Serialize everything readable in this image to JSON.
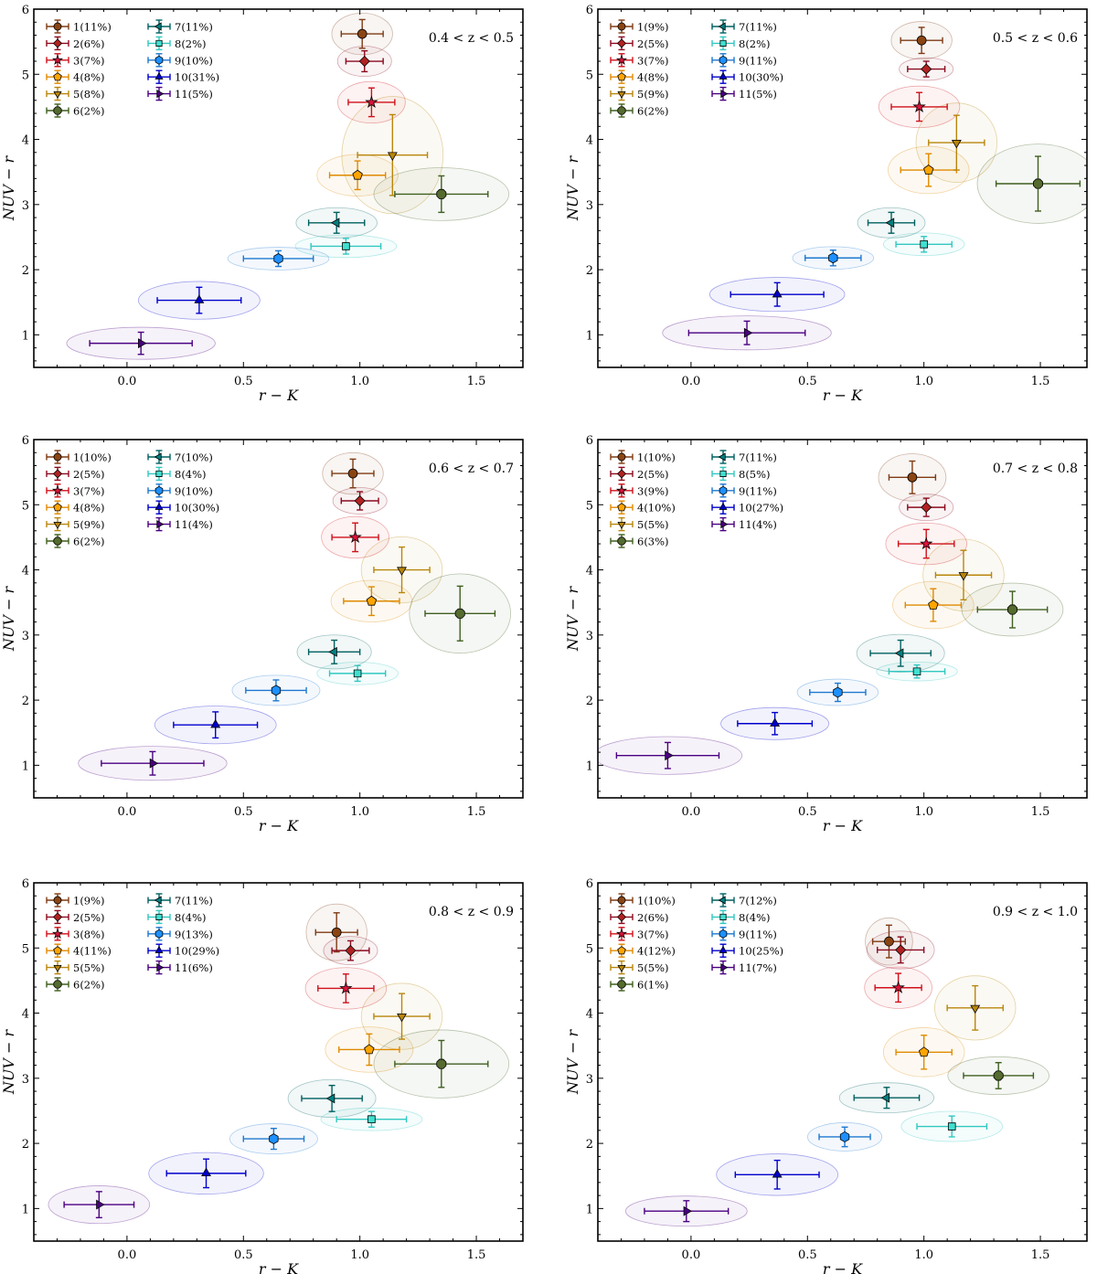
{
  "styles": [
    {
      "id": 1,
      "marker": "circle",
      "color": "#7f3b13",
      "fill": "#8b4513"
    },
    {
      "id": 2,
      "marker": "diamond",
      "color": "#8b0a1e",
      "fill": "#b22222"
    },
    {
      "id": 3,
      "marker": "star",
      "color": "#d0101a",
      "fill": "#dc143c"
    },
    {
      "id": 4,
      "marker": "pentagon",
      "color": "#e08a00",
      "fill": "#ffa500"
    },
    {
      "id": 5,
      "marker": "tri-down",
      "color": "#b8860b",
      "fill": "#b8860b"
    },
    {
      "id": 6,
      "marker": "octagon",
      "color": "#3f5f1f",
      "fill": "#556b2f"
    },
    {
      "id": 7,
      "marker": "tri-left",
      "color": "#006060",
      "fill": "#008080"
    },
    {
      "id": 8,
      "marker": "square",
      "color": "#30c8c0",
      "fill": "#40e0d0"
    },
    {
      "id": 9,
      "marker": "hexagon",
      "color": "#1e78d0",
      "fill": "#1e90ff"
    },
    {
      "id": 10,
      "marker": "tri-up",
      "color": "#0000cd",
      "fill": "#0000cd"
    },
    {
      "id": 11,
      "marker": "tri-right",
      "color": "#4b0082",
      "fill": "#4b0082"
    }
  ],
  "chart_data": [
    {
      "type": "scatter",
      "title": "0.4 < z < 0.5",
      "xlabel": "r − K",
      "ylabel": "NUV − r",
      "xlim": [
        -0.4,
        1.7
      ],
      "ylim": [
        0.5,
        6
      ],
      "xticks": [
        "0.0",
        "0.5",
        "1.0",
        "1.5"
      ],
      "yticks": [
        "1",
        "2",
        "3",
        "4",
        "5",
        "6"
      ],
      "legend": [
        "1(11%)",
        "2(6%)",
        "3(7%)",
        "4(8%)",
        "5(8%)",
        "6(2%)",
        "7(11%)",
        "8(2%)",
        "9(10%)",
        "10(31%)",
        "11(5%)"
      ],
      "points": [
        {
          "x": 1.01,
          "y": 5.62,
          "xerr": 0.09,
          "yerr": 0.22
        },
        {
          "x": 1.02,
          "y": 5.2,
          "xerr": 0.08,
          "yerr": 0.16
        },
        {
          "x": 1.05,
          "y": 4.57,
          "xerr": 0.1,
          "yerr": 0.22
        },
        {
          "x": 0.99,
          "y": 3.45,
          "xerr": 0.12,
          "yerr": 0.22
        },
        {
          "x": 1.14,
          "y": 3.76,
          "xerr": 0.15,
          "yerr": 0.62
        },
        {
          "x": 1.35,
          "y": 3.16,
          "xerr": 0.2,
          "yerr": 0.28
        },
        {
          "x": 0.9,
          "y": 2.72,
          "xerr": 0.12,
          "yerr": 0.16
        },
        {
          "x": 0.94,
          "y": 2.36,
          "xerr": 0.15,
          "yerr": 0.12
        },
        {
          "x": 0.65,
          "y": 2.17,
          "xerr": 0.15,
          "yerr": 0.12
        },
        {
          "x": 0.31,
          "y": 1.53,
          "xerr": 0.18,
          "yerr": 0.2
        },
        {
          "x": 0.06,
          "y": 0.87,
          "xerr": 0.22,
          "yerr": 0.17
        }
      ]
    },
    {
      "type": "scatter",
      "title": "0.5 < z < 0.6",
      "xlabel": "r − K",
      "ylabel": "NUV − r",
      "xlim": [
        -0.4,
        1.7
      ],
      "ylim": [
        0.5,
        6
      ],
      "xticks": [
        "0.0",
        "0.5",
        "1.0",
        "1.5"
      ],
      "yticks": [
        "1",
        "2",
        "3",
        "4",
        "5",
        "6"
      ],
      "legend": [
        "1(9%)",
        "2(5%)",
        "3(7%)",
        "4(8%)",
        "5(9%)",
        "6(2%)",
        "7(11%)",
        "8(2%)",
        "9(11%)",
        "10(30%)",
        "11(5%)"
      ],
      "points": [
        {
          "x": 0.99,
          "y": 5.52,
          "xerr": 0.09,
          "yerr": 0.2
        },
        {
          "x": 1.01,
          "y": 5.08,
          "xerr": 0.08,
          "yerr": 0.12
        },
        {
          "x": 0.98,
          "y": 4.5,
          "xerr": 0.12,
          "yerr": 0.22
        },
        {
          "x": 1.02,
          "y": 3.53,
          "xerr": 0.12,
          "yerr": 0.25
        },
        {
          "x": 1.14,
          "y": 3.95,
          "xerr": 0.12,
          "yerr": 0.42
        },
        {
          "x": 1.49,
          "y": 3.32,
          "xerr": 0.18,
          "yerr": 0.42
        },
        {
          "x": 0.86,
          "y": 2.72,
          "xerr": 0.1,
          "yerr": 0.16
        },
        {
          "x": 1.0,
          "y": 2.39,
          "xerr": 0.12,
          "yerr": 0.12
        },
        {
          "x": 0.61,
          "y": 2.18,
          "xerr": 0.12,
          "yerr": 0.12
        },
        {
          "x": 0.37,
          "y": 1.62,
          "xerr": 0.2,
          "yerr": 0.18
        },
        {
          "x": 0.24,
          "y": 1.03,
          "xerr": 0.25,
          "yerr": 0.18
        }
      ]
    },
    {
      "type": "scatter",
      "title": "0.6 < z < 0.7",
      "xlabel": "r − K",
      "ylabel": "NUV − r",
      "xlim": [
        -0.4,
        1.7
      ],
      "ylim": [
        0.5,
        6
      ],
      "xticks": [
        "0.0",
        "0.5",
        "1.0",
        "1.5"
      ],
      "yticks": [
        "1",
        "2",
        "3",
        "4",
        "5",
        "6"
      ],
      "legend": [
        "1(10%)",
        "2(5%)",
        "3(7%)",
        "4(8%)",
        "5(9%)",
        "6(2%)",
        "7(10%)",
        "8(4%)",
        "9(10%)",
        "10(30%)",
        "11(4%)"
      ],
      "points": [
        {
          "x": 0.97,
          "y": 5.48,
          "xerr": 0.09,
          "yerr": 0.22
        },
        {
          "x": 1.0,
          "y": 5.06,
          "xerr": 0.08,
          "yerr": 0.14
        },
        {
          "x": 0.98,
          "y": 4.5,
          "xerr": 0.1,
          "yerr": 0.22
        },
        {
          "x": 1.05,
          "y": 3.52,
          "xerr": 0.12,
          "yerr": 0.22
        },
        {
          "x": 1.18,
          "y": 4.0,
          "xerr": 0.12,
          "yerr": 0.35
        },
        {
          "x": 1.43,
          "y": 3.33,
          "xerr": 0.15,
          "yerr": 0.42
        },
        {
          "x": 0.89,
          "y": 2.74,
          "xerr": 0.11,
          "yerr": 0.18
        },
        {
          "x": 0.99,
          "y": 2.41,
          "xerr": 0.12,
          "yerr": 0.12
        },
        {
          "x": 0.64,
          "y": 2.15,
          "xerr": 0.13,
          "yerr": 0.16
        },
        {
          "x": 0.38,
          "y": 1.62,
          "xerr": 0.18,
          "yerr": 0.2
        },
        {
          "x": 0.11,
          "y": 1.03,
          "xerr": 0.22,
          "yerr": 0.18
        }
      ]
    },
    {
      "type": "scatter",
      "title": "0.7 < z < 0.8",
      "xlabel": "r − K",
      "ylabel": "NUV − r",
      "xlim": [
        -0.4,
        1.7
      ],
      "ylim": [
        0.5,
        6
      ],
      "xticks": [
        "0.0",
        "0.5",
        "1.0",
        "1.5"
      ],
      "yticks": [
        "1",
        "2",
        "3",
        "4",
        "5",
        "6"
      ],
      "legend": [
        "1(10%)",
        "2(5%)",
        "3(9%)",
        "4(10%)",
        "5(5%)",
        "6(3%)",
        "7(11%)",
        "8(5%)",
        "9(11%)",
        "10(27%)",
        "11(4%)"
      ],
      "points": [
        {
          "x": 0.95,
          "y": 5.42,
          "xerr": 0.1,
          "yerr": 0.25
        },
        {
          "x": 1.01,
          "y": 4.96,
          "xerr": 0.08,
          "yerr": 0.14
        },
        {
          "x": 1.01,
          "y": 4.4,
          "xerr": 0.12,
          "yerr": 0.22
        },
        {
          "x": 1.04,
          "y": 3.46,
          "xerr": 0.12,
          "yerr": 0.25
        },
        {
          "x": 1.17,
          "y": 3.92,
          "xerr": 0.12,
          "yerr": 0.38
        },
        {
          "x": 1.38,
          "y": 3.39,
          "xerr": 0.15,
          "yerr": 0.28
        },
        {
          "x": 0.9,
          "y": 2.72,
          "xerr": 0.13,
          "yerr": 0.2
        },
        {
          "x": 0.97,
          "y": 2.44,
          "xerr": 0.12,
          "yerr": 0.1
        },
        {
          "x": 0.63,
          "y": 2.12,
          "xerr": 0.12,
          "yerr": 0.14
        },
        {
          "x": 0.36,
          "y": 1.64,
          "xerr": 0.16,
          "yerr": 0.17
        },
        {
          "x": -0.1,
          "y": 1.15,
          "xerr": 0.22,
          "yerr": 0.2
        }
      ]
    },
    {
      "type": "scatter",
      "title": "0.8 < z < 0.9",
      "xlabel": "r − K",
      "ylabel": "NUV − r",
      "xlim": [
        -0.4,
        1.7
      ],
      "ylim": [
        0.5,
        6
      ],
      "xticks": [
        "0.0",
        "0.5",
        "1.0",
        "1.5"
      ],
      "yticks": [
        "1",
        "2",
        "3",
        "4",
        "5",
        "6"
      ],
      "legend": [
        "1(9%)",
        "2(5%)",
        "3(8%)",
        "4(11%)",
        "5(5%)",
        "6(2%)",
        "7(11%)",
        "8(4%)",
        "9(13%)",
        "10(29%)",
        "11(6%)"
      ],
      "points": [
        {
          "x": 0.9,
          "y": 5.24,
          "xerr": 0.09,
          "yerr": 0.3
        },
        {
          "x": 0.96,
          "y": 4.96,
          "xerr": 0.08,
          "yerr": 0.15
        },
        {
          "x": 0.94,
          "y": 4.38,
          "xerr": 0.12,
          "yerr": 0.22
        },
        {
          "x": 1.04,
          "y": 3.44,
          "xerr": 0.13,
          "yerr": 0.24
        },
        {
          "x": 1.18,
          "y": 3.95,
          "xerr": 0.12,
          "yerr": 0.35
        },
        {
          "x": 1.35,
          "y": 3.22,
          "xerr": 0.2,
          "yerr": 0.36
        },
        {
          "x": 0.88,
          "y": 2.69,
          "xerr": 0.13,
          "yerr": 0.2
        },
        {
          "x": 1.05,
          "y": 2.37,
          "xerr": 0.15,
          "yerr": 0.12
        },
        {
          "x": 0.63,
          "y": 2.07,
          "xerr": 0.13,
          "yerr": 0.16
        },
        {
          "x": 0.34,
          "y": 1.54,
          "xerr": 0.17,
          "yerr": 0.22
        },
        {
          "x": -0.12,
          "y": 1.06,
          "xerr": 0.15,
          "yerr": 0.2
        }
      ]
    },
    {
      "type": "scatter",
      "title": "0.9 < z < 1.0",
      "xlabel": "r − K",
      "ylabel": "NUV − r",
      "xlim": [
        -0.4,
        1.7
      ],
      "ylim": [
        0.5,
        6
      ],
      "xticks": [
        "0.0",
        "0.5",
        "1.0",
        "1.5"
      ],
      "yticks": [
        "1",
        "2",
        "3",
        "4",
        "5",
        "6"
      ],
      "legend": [
        "1(10%)",
        "2(6%)",
        "3(7%)",
        "4(12%)",
        "5(5%)",
        "6(1%)",
        "7(12%)",
        "8(4%)",
        "9(11%)",
        "10(25%)",
        "11(7%)"
      ],
      "points": [
        {
          "x": 0.85,
          "y": 5.1,
          "xerr": 0.07,
          "yerr": 0.25
        },
        {
          "x": 0.9,
          "y": 4.97,
          "xerr": 0.1,
          "yerr": 0.2
        },
        {
          "x": 0.89,
          "y": 4.39,
          "xerr": 0.1,
          "yerr": 0.22
        },
        {
          "x": 1.0,
          "y": 3.4,
          "xerr": 0.12,
          "yerr": 0.26
        },
        {
          "x": 1.22,
          "y": 4.08,
          "xerr": 0.12,
          "yerr": 0.34
        },
        {
          "x": 1.32,
          "y": 3.04,
          "xerr": 0.15,
          "yerr": 0.2
        },
        {
          "x": 0.84,
          "y": 2.7,
          "xerr": 0.14,
          "yerr": 0.16
        },
        {
          "x": 1.12,
          "y": 2.26,
          "xerr": 0.15,
          "yerr": 0.16
        },
        {
          "x": 0.66,
          "y": 2.1,
          "xerr": 0.11,
          "yerr": 0.15
        },
        {
          "x": 0.37,
          "y": 1.52,
          "xerr": 0.18,
          "yerr": 0.22
        },
        {
          "x": -0.02,
          "y": 0.96,
          "xerr": 0.18,
          "yerr": 0.16
        }
      ]
    }
  ]
}
